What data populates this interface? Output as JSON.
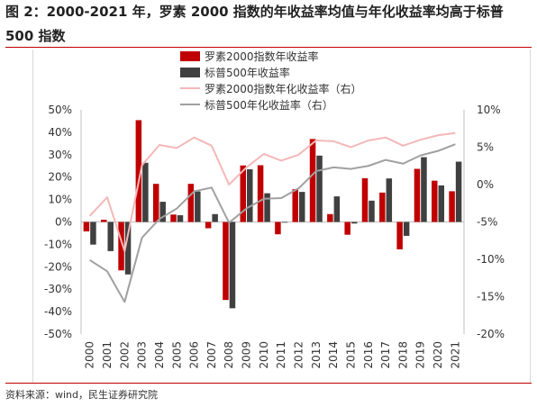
{
  "header": {
    "title": "图 2：2000-2021 年，罗素 2000 指数的年收益率均值与年化收益率均高于标普 500 指数"
  },
  "footer": {
    "source": "资料来源：wind，民生证券研究院"
  },
  "colors": {
    "russell_bar": "#c00000",
    "sp_bar": "#404040",
    "russell_line": "#f4b8b8",
    "sp_line": "#a0a0a0",
    "accent_rule": "#c00000"
  },
  "chart_data": {
    "type": "bar",
    "categories": [
      "2000",
      "2001",
      "2002",
      "2003",
      "2004",
      "2005",
      "2006",
      "2007",
      "2008",
      "2009",
      "2010",
      "2011",
      "2012",
      "2013",
      "2014",
      "2015",
      "2016",
      "2017",
      "2018",
      "2019",
      "2020",
      "2021"
    ],
    "left_axis": {
      "ylim": [
        -50,
        50
      ],
      "ticks": [
        "50%",
        "40%",
        "30%",
        "20%",
        "10%",
        "0%",
        "-10%",
        "-20%",
        "-30%",
        "-40%",
        "-50%"
      ]
    },
    "right_axis": {
      "ylim": [
        -20,
        10
      ],
      "ticks": [
        "10%",
        "5%",
        "0%",
        "-5%",
        "-10%",
        "-15%",
        "-20%"
      ]
    },
    "legend_position": "top-center",
    "series": [
      {
        "name": "罗素2000指数年收益率",
        "kind": "bar",
        "axis": "left",
        "values": [
          -4.2,
          1.0,
          -21.6,
          45.4,
          17.0,
          3.3,
          17.0,
          -2.8,
          -34.8,
          25.2,
          25.3,
          -5.5,
          14.6,
          37.0,
          3.5,
          -5.7,
          19.5,
          13.1,
          -12.2,
          23.7,
          18.4,
          13.7
        ]
      },
      {
        "name": "标普500年收益率",
        "kind": "bar",
        "axis": "left",
        "values": [
          -10.1,
          -13.0,
          -23.4,
          26.4,
          9.0,
          3.0,
          13.6,
          3.5,
          -38.5,
          23.5,
          12.8,
          -0.1,
          13.4,
          29.6,
          11.4,
          -0.7,
          9.5,
          19.4,
          -6.2,
          28.9,
          16.3,
          26.9
        ]
      },
      {
        "name": "罗素2000指数年化收益率（右）",
        "kind": "line",
        "axis": "right",
        "values": [
          -4.2,
          -1.7,
          -8.9,
          2.6,
          5.3,
          4.9,
          6.3,
          5.2,
          0.0,
          2.3,
          4.1,
          3.2,
          4.0,
          5.9,
          5.8,
          5.0,
          5.9,
          6.3,
          5.2,
          6.0,
          6.6,
          6.9
        ]
      },
      {
        "name": "标普500年化收益率（右）",
        "kind": "line",
        "axis": "right",
        "values": [
          -10.1,
          -11.6,
          -15.7,
          -7.1,
          -4.6,
          -3.2,
          -0.9,
          -0.4,
          -5.1,
          -3.2,
          -1.9,
          -1.8,
          -0.5,
          1.8,
          2.3,
          2.1,
          2.5,
          3.3,
          2.8,
          3.9,
          4.5,
          5.4
        ]
      }
    ]
  }
}
